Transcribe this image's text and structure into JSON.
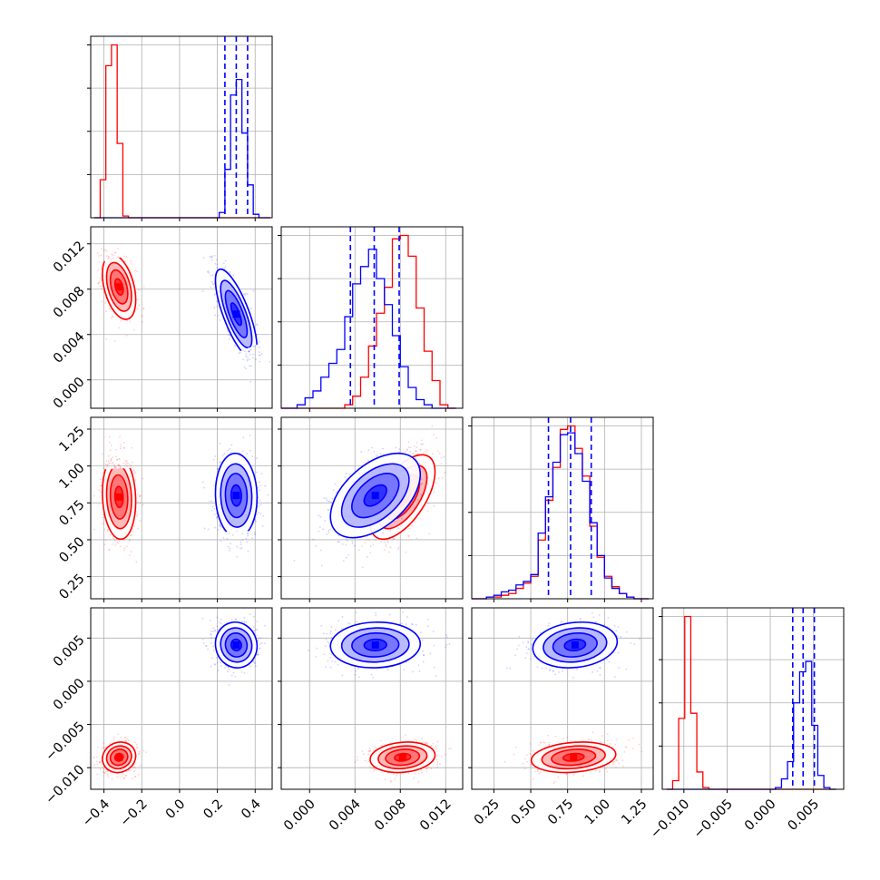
{
  "chart_data": {
    "type": "corner",
    "colors": {
      "red": "#ff0000",
      "blue": "#0000ff"
    },
    "grid": true,
    "series": [
      {
        "color": "#ff0000",
        "marginal_quantile_lines": false
      },
      {
        "color": "#0000ff",
        "marginal_quantile_lines": true
      }
    ],
    "parameters": [
      {
        "range": [
          -0.47,
          0.49
        ],
        "ticks": [
          -0.4,
          -0.2,
          0.0,
          0.2,
          0.4
        ],
        "tick_labels": [
          "−0.4",
          "−0.2",
          "0.0",
          "0.2",
          "0.4"
        ],
        "bins": [
          -0.45,
          -0.42,
          -0.39,
          -0.36,
          -0.33,
          -0.3,
          -0.27,
          -0.24,
          -0.21,
          -0.18,
          -0.15,
          -0.12,
          -0.09,
          -0.06,
          -0.03,
          0.0,
          0.03,
          0.06,
          0.09,
          0.12,
          0.15,
          0.18,
          0.21,
          0.24,
          0.27,
          0.3,
          0.33,
          0.36,
          0.39,
          0.42,
          0.45,
          0.48
        ],
        "hist": {
          "red": [
            0,
            0.22,
            0.88,
            1.0,
            0.43,
            0.01,
            0,
            0,
            0,
            0,
            0,
            0,
            0,
            0,
            0,
            0,
            0,
            0,
            0,
            0,
            0,
            0,
            0,
            0,
            0,
            0,
            0,
            0,
            0,
            0,
            0
          ],
          "blue": [
            0,
            0,
            0,
            0,
            0,
            0,
            0,
            0,
            0,
            0,
            0,
            0,
            0,
            0,
            0,
            0,
            0,
            0,
            0,
            0,
            0,
            0,
            0.03,
            0.28,
            0.71,
            0.8,
            0.49,
            0.19,
            0.02,
            0,
            0
          ]
        },
        "quantiles_blue": [
          0.24,
          0.3,
          0.36
        ],
        "center": {
          "red": -0.32,
          "blue": 0.3
        },
        "sd": {
          "red": 0.04,
          "blue": 0.05
        }
      },
      {
        "range": [
          -0.0025,
          0.0135
        ],
        "ticks": [
          0.0,
          0.004,
          0.008,
          0.012
        ],
        "tick_labels": [
          "0.000",
          "0.004",
          "0.008",
          "0.012"
        ],
        "bins": [
          -0.0025,
          -0.0018,
          -0.0011,
          -0.0004,
          0.0003,
          0.001,
          0.0017,
          0.0024,
          0.0031,
          0.0038,
          0.0045,
          0.0052,
          0.0059,
          0.0066,
          0.0073,
          0.008,
          0.0087,
          0.0094,
          0.0101,
          0.0108,
          0.0115,
          0.0122,
          0.0129
        ],
        "hist": {
          "red": [
            0,
            0,
            0,
            0,
            0,
            0,
            0,
            0,
            0.02,
            0.07,
            0.18,
            0.36,
            0.55,
            0.7,
            0.98,
            1.0,
            0.88,
            0.58,
            0.33,
            0.16,
            0.02,
            0
          ],
          "blue": [
            0,
            0,
            0.02,
            0.06,
            0.1,
            0.18,
            0.26,
            0.34,
            0.53,
            0.72,
            0.82,
            0.92,
            0.75,
            0.6,
            0.42,
            0.24,
            0.12,
            0.05,
            0.02,
            0,
            0,
            0
          ]
        },
        "quantiles_blue": [
          0.0036,
          0.0057,
          0.0079
        ],
        "center": {
          "red": 0.0082,
          "blue": 0.0058
        },
        "sd": {
          "red": 0.0013,
          "blue": 0.0018
        }
      },
      {
        "range": [
          0.1,
          1.33
        ],
        "ticks": [
          0.25,
          0.5,
          0.75,
          1.0,
          1.25
        ],
        "tick_labels": [
          "0.25",
          "0.50",
          "0.75",
          "1.00",
          "1.25"
        ],
        "bins": [
          0.1,
          0.15,
          0.2,
          0.25,
          0.3,
          0.35,
          0.4,
          0.45,
          0.5,
          0.55,
          0.6,
          0.65,
          0.7,
          0.75,
          0.8,
          0.85,
          0.9,
          0.95,
          1.0,
          1.05,
          1.1,
          1.15,
          1.2,
          1.25,
          1.3
        ],
        "hist": {
          "red": [
            0,
            0,
            0.01,
            0.01,
            0.02,
            0.03,
            0.06,
            0.09,
            0.13,
            0.34,
            0.57,
            0.76,
            0.98,
            1.0,
            0.87,
            0.71,
            0.42,
            0.24,
            0.13,
            0.07,
            0.03,
            0.01,
            0,
            0
          ],
          "blue": [
            0,
            0,
            0.01,
            0.02,
            0.04,
            0.05,
            0.08,
            0.1,
            0.14,
            0.38,
            0.59,
            0.79,
            0.95,
            0.96,
            0.84,
            0.68,
            0.44,
            0.25,
            0.12,
            0.06,
            0.03,
            0.01,
            0,
            0
          ]
        },
        "quantiles_blue": [
          0.62,
          0.77,
          0.91
        ],
        "center": {
          "red": 0.79,
          "blue": 0.8
        },
        "sd": {
          "red": 0.13,
          "blue": 0.13
        }
      },
      {
        "range": [
          -0.0125,
          0.0085
        ],
        "ticks": [
          -0.01,
          -0.005,
          0.0,
          0.005
        ],
        "tick_labels": [
          "−0.010",
          "−0.005",
          "0.000",
          "0.005"
        ],
        "bins": [
          -0.012,
          -0.0113,
          -0.0106,
          -0.0099,
          -0.0092,
          -0.0085,
          -0.0078,
          -0.0071,
          -0.0064,
          -0.0057,
          -0.005,
          -0.0043,
          -0.0036,
          -0.0029,
          -0.0022,
          -0.0015,
          -0.0008,
          -0.0001,
          0.0006,
          0.0013,
          0.002,
          0.0027,
          0.0034,
          0.0041,
          0.0048,
          0.0055,
          0.0062,
          0.0069,
          0.0076
        ],
        "hist": {
          "red": [
            0,
            0.05,
            0.41,
            1.0,
            0.44,
            0.1,
            0.01,
            0,
            0,
            0,
            0,
            0,
            0,
            0,
            0,
            0,
            0,
            0,
            0,
            0,
            0,
            0,
            0,
            0,
            0,
            0,
            0,
            0
          ],
          "blue": [
            0,
            0,
            0,
            0,
            0,
            0,
            0,
            0,
            0,
            0,
            0,
            0,
            0,
            0,
            0,
            0,
            0,
            0,
            0.01,
            0.06,
            0.16,
            0.5,
            0.68,
            0.74,
            0.37,
            0.08,
            0.01,
            0
          ]
        },
        "quantiles_blue": [
          0.0026,
          0.0038,
          0.0051
        ],
        "center": {
          "red": -0.0088,
          "blue": 0.0042
        },
        "sd": {
          "red": 0.0008,
          "blue": 0.0012
        }
      }
    ],
    "correlations": {
      "1-0": {
        "red": -0.4,
        "blue": -0.75
      },
      "2-0": {
        "red": -0.1,
        "blue": -0.05
      },
      "2-1": {
        "red": 0.6,
        "blue": 0.5
      },
      "3-0": {
        "red": 0.1,
        "blue": -0.05
      },
      "3-1": {
        "red": 0.15,
        "blue": 0.05
      },
      "3-2": {
        "red": 0.2,
        "blue": 0.15
      }
    }
  }
}
